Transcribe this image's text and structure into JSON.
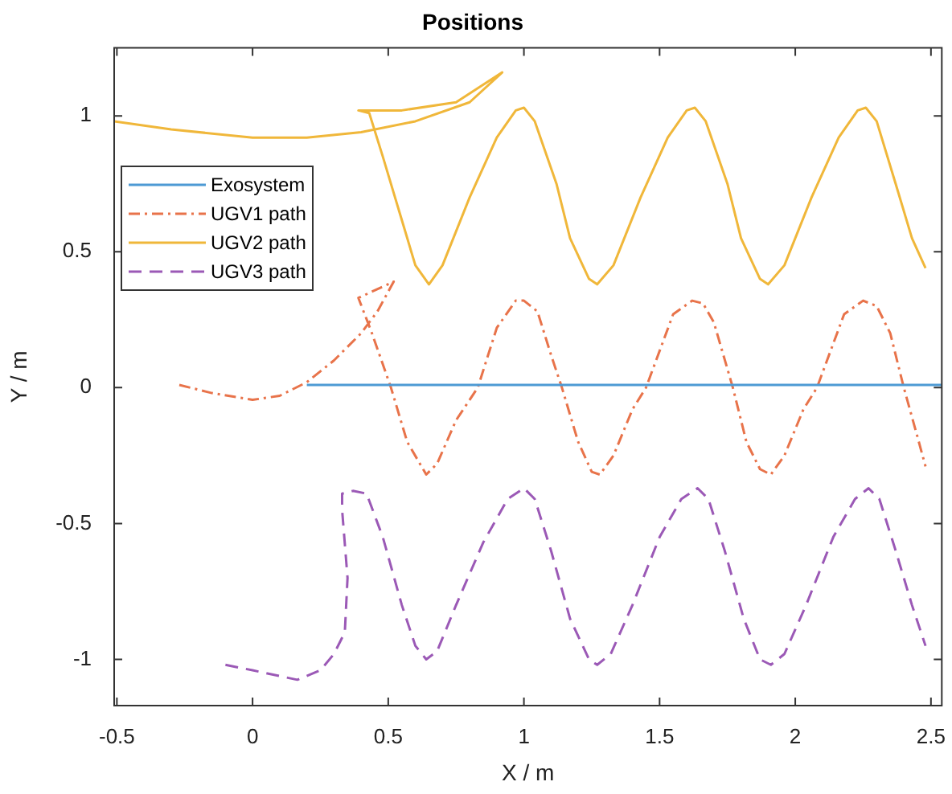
{
  "chart_data": {
    "type": "line",
    "title": "Positions",
    "xlabel": "X / m",
    "ylabel": "Y / m",
    "xlim": [
      -0.51,
      2.54
    ],
    "ylim": [
      -1.17,
      1.25
    ],
    "xticks": [
      -0.5,
      0,
      0.5,
      1,
      1.5,
      2,
      2.5
    ],
    "yticks": [
      -1,
      -0.5,
      0,
      0.5,
      1
    ],
    "grid": false,
    "legend": "top left",
    "marker": "none",
    "series": [
      {
        "name": "Exosystem",
        "color": "#4d9ad4",
        "line_style": "solid",
        "x": [
          0.2,
          2.54
        ],
        "values": [
          0.01,
          0.01
        ]
      },
      {
        "name": "UGV1 path",
        "color": "#e8734a",
        "line_style": "dashdot",
        "x": [
          -0.27,
          -0.15,
          0,
          0.1,
          0.2,
          0.3,
          0.4,
          0.46,
          0.52,
          0.39,
          0.44,
          0.51,
          0.57,
          0.64,
          0.68,
          0.75,
          0.83,
          0.9,
          0.97,
          1.0,
          1.05,
          1.1,
          1.14,
          1.2,
          1.25,
          1.28,
          1.33,
          1.4,
          1.45,
          1.55,
          1.62,
          1.66,
          1.7,
          1.77,
          1.82,
          1.87,
          1.91,
          1.96,
          2.03,
          2.08,
          2.18,
          2.25,
          2.3,
          2.35,
          2.4,
          2.45,
          2.48
        ],
        "values": [
          0.01,
          -0.02,
          -0.045,
          -0.03,
          0.02,
          0.1,
          0.2,
          0.28,
          0.39,
          0.33,
          0.2,
          0,
          -0.2,
          -0.32,
          -0.28,
          -0.12,
          0,
          0.22,
          0.32,
          0.32,
          0.28,
          0.12,
          0,
          -0.2,
          -0.31,
          -0.32,
          -0.25,
          -0.08,
          0,
          0.27,
          0.32,
          0.31,
          0.24,
          0,
          -0.2,
          -0.3,
          -0.32,
          -0.25,
          -0.08,
          0,
          0.27,
          0.32,
          0.3,
          0.2,
          0,
          -0.18,
          -0.29
        ]
      },
      {
        "name": "UGV2 path",
        "color": "#f0b73a",
        "line_style": "solid",
        "x": [
          -0.51,
          -0.3,
          0,
          0.2,
          0.4,
          0.6,
          0.8,
          0.92,
          0.75,
          0.55,
          0.39,
          0.43,
          0.48,
          0.54,
          0.6,
          0.65,
          0.7,
          0.8,
          0.9,
          0.97,
          1.0,
          1.04,
          1.12,
          1.17,
          1.24,
          1.27,
          1.33,
          1.43,
          1.53,
          1.6,
          1.63,
          1.67,
          1.75,
          1.8,
          1.87,
          1.9,
          1.96,
          2.06,
          2.16,
          2.23,
          2.26,
          2.3,
          2.37,
          2.43,
          2.48
        ],
        "values": [
          0.98,
          0.95,
          0.92,
          0.92,
          0.94,
          0.98,
          1.05,
          1.16,
          1.05,
          1.02,
          1.02,
          1.01,
          0.85,
          0.65,
          0.45,
          0.38,
          0.45,
          0.7,
          0.92,
          1.02,
          1.03,
          0.98,
          0.75,
          0.55,
          0.4,
          0.38,
          0.45,
          0.7,
          0.92,
          1.02,
          1.03,
          0.98,
          0.75,
          0.55,
          0.4,
          0.38,
          0.45,
          0.7,
          0.92,
          1.02,
          1.03,
          0.98,
          0.75,
          0.55,
          0.44
        ]
      },
      {
        "name": "UGV3 path",
        "color": "#9b59b6",
        "line_style": "dashed",
        "x": [
          -0.1,
          0,
          0.165,
          0.25,
          0.3,
          0.34,
          0.35,
          0.33,
          0.33,
          0.37,
          0.42,
          0.48,
          0.55,
          0.6,
          0.64,
          0.68,
          0.75,
          0.85,
          0.94,
          1.0,
          1.04,
          1.1,
          1.17,
          1.24,
          1.27,
          1.32,
          1.4,
          1.5,
          1.58,
          1.64,
          1.68,
          1.74,
          1.81,
          1.87,
          1.91,
          1.96,
          2.04,
          2.14,
          2.22,
          2.27,
          2.31,
          2.37,
          2.43,
          2.48
        ],
        "values": [
          -1.02,
          -1.04,
          -1.075,
          -1.04,
          -0.98,
          -0.9,
          -0.7,
          -0.45,
          -0.39,
          -0.38,
          -0.39,
          -0.55,
          -0.8,
          -0.95,
          -1.0,
          -0.97,
          -0.8,
          -0.57,
          -0.41,
          -0.37,
          -0.41,
          -0.6,
          -0.85,
          -1.0,
          -1.02,
          -0.98,
          -0.8,
          -0.55,
          -0.41,
          -0.37,
          -0.41,
          -0.6,
          -0.85,
          -1.0,
          -1.02,
          -0.98,
          -0.8,
          -0.55,
          -0.41,
          -0.37,
          -0.41,
          -0.6,
          -0.8,
          -0.95
        ]
      }
    ]
  }
}
